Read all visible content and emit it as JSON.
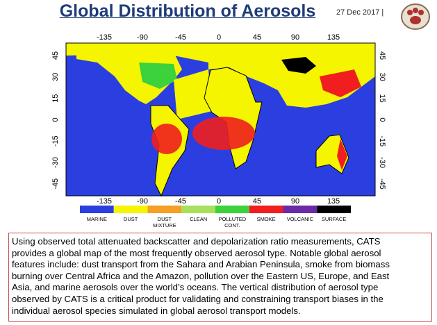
{
  "header": {
    "title": "Global Distribution of Aerosols",
    "date": "27 Dec 2017 |"
  },
  "map": {
    "lon_ticks": [
      "-135",
      "-90",
      "-45",
      "0",
      "45",
      "90",
      "135"
    ],
    "lat_ticks": [
      "45",
      "30",
      "15",
      "0",
      "-15",
      "-30",
      "-45"
    ]
  },
  "legend": [
    {
      "label": "MARINE",
      "color": "#2b3fe0"
    },
    {
      "label": "DUST",
      "color": "#f5f500"
    },
    {
      "label": "DUST MIXTURE",
      "color": "#f5a024"
    },
    {
      "label": "CLEAN",
      "color": "#a6e05c"
    },
    {
      "label": "POLLUTED CONT.",
      "color": "#3cd23c"
    },
    {
      "label": "SMOKE",
      "color": "#f01e1e"
    },
    {
      "label": "VOLCANIC",
      "color": "#6a2aa8"
    },
    {
      "label": "SURFACE",
      "color": "#000000"
    }
  ],
  "caption": [
    "Using observed total attenuated backscatter and depolarization ratio measurements, CATS",
    "provides a global map of the most frequently observed aerosol type.  Notable global aerosol",
    "features include:  dust transport from the Sahara and Arabian Peninsula, smoke from biomass",
    "burning over Central Africa and the Amazon, pollution over the Eastern US, Europe, and East",
    "Asia, and marine aerosols over the world’s oceans.  The vertical distribution of aerosol type",
    "observed by CATS is a critical product for validating and constraining  transport biases in the",
    "individual aerosol species simulated in global aerosol transport models."
  ]
}
